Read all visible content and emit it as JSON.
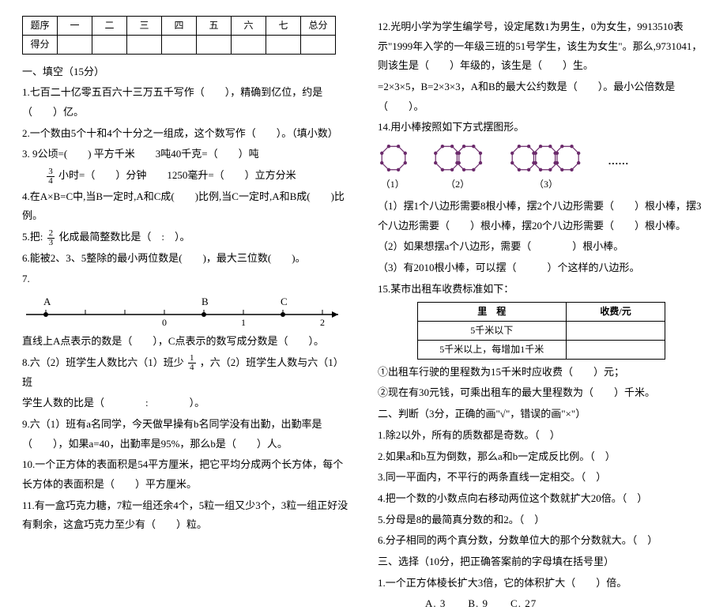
{
  "score_table": {
    "headers": [
      "题序",
      "一",
      "二",
      "三",
      "四",
      "五",
      "六",
      "七",
      "总分"
    ],
    "row2_first": "得分"
  },
  "left": {
    "h1": "一、填空（15分）",
    "q1": "1.七百二十亿零五百六十三万五千写作（　　），精确到亿位，约是（　　）亿。",
    "q2": "2.一个数由5个十和4个十分之一组成，这个数写作（　　）。（填小数）",
    "q3a": "3. 9公顷=(　　) 平方千米　　3吨40千克=（　　）吨",
    "q3b_pre": "　　",
    "q3b_mid": "小时=（　　）分钟　　1250毫升=（　　）立方分米",
    "q4": "4.在A×B=C中,当B一定时,A和C成(　　)比例,当C一定时,A和B成(　　)比例。",
    "q5_pre": "5.把:",
    "q5_post": "化成最简整数比是（　:　）。",
    "q6": "6.能被2、3、5整除的最小两位数是(　　)，最大三位数(　　)。",
    "q7": "7.",
    "q7_line": "直线上A点表示的数是（　　），C点表示的数写成分数是（　　）。",
    "q8a": "8.六（2）班学生人数比六（1）班少",
    "q8b": "，六（2）班学生人数与六（1）班",
    "q8c": "学生人数的比是（　　　　:　　　　）。",
    "q9": "9.六（1）班有a名同学，今天做早操有b名同学没有出勤，出勤率是（　　），如果a=40，出勤率是95%，那么b是（　　）人。",
    "q10": "10.一个正方体的表面积是54平方厘米，把它平均分成两个长方体，每个长方体的表面积是（　　）平方厘米。",
    "q11": "11.有一盒巧克力糖，7粒一组还余4个，5粒一组又少3个，3粒一组正好没有剩余，这盒巧克力至少有（　　）粒。",
    "frac34": {
      "n": "3",
      "d": "4"
    },
    "frac23": {
      "n": "2",
      "d": "3"
    },
    "frac14": {
      "n": "1",
      "d": "4"
    },
    "numline": {
      "A": "A",
      "B": "B",
      "C": "C",
      "t0": "0",
      "t1": "1",
      "t2": "2"
    }
  },
  "right": {
    "q12": "12.光明小学为学生编学号，设定尾数1为男生，0为女生，9913510表示\"1999年入学的一年级三班的51号学生，该生为女生\"。那么,9731041，则该生是（　　）年级的，该生是（　　）生。",
    "q13": "=2×3×5，B=2×3×3，A和B的最大公约数是（　　）。最小公倍数是（　　）。",
    "q14": "14.用小棒按照如下方式摆图形。",
    "oct_labels": [
      "（1）",
      "（2）",
      "（3）"
    ],
    "dots": "……",
    "q14_1": "（1）摆1个八边形需要8根小棒，摆2个八边形需要（　　）根小棒，摆3个八边形需要（　　）根小棒，摆20个八边形需要（　　）根小棒。",
    "q14_2": "（2）如果想摆a个八边形，需要（　　　　）根小棒。",
    "q14_3": "（3）有2010根小棒，可以摆（　　　）个这样的八边形。",
    "q15": "15.某市出租车收费标准如下：",
    "fare": {
      "h1": "里　程",
      "h2": "收费/元",
      "r1": "5千米以下",
      "r2": "5千米以上，每增加1千米"
    },
    "q15_1": "①出租车行驶的里程数为15千米时应收费（　　）元；",
    "q15_2": "②现在有30元钱，可乘出租车的最大里程数为（　　）千米。",
    "h2": "二、判断（3分，正确的画\"√\"，错误的画\"×\"）",
    "j1": "1.除2以外，所有的质数都是奇数。（　）",
    "j2": "2.如果a和b互为倒数，那么a和b一定成反比例。（　）",
    "j3": "3.同一平面内，不平行的两条直线一定相交。（　）",
    "j4": "4.把一个数的小数点向右移动两位这个数就扩大20倍。（　）",
    "j5": "5.分母是8的最简真分数的和2。（　）",
    "j6": "6.分子相同的两个真分数，分数单位大的那个分数就大。（　）",
    "h3": "三、选择（10分，把正确答案前的字母填在括号里）",
    "c1": "1.一个正方体棱长扩大3倍，它的体积扩大（　　）倍。",
    "c1_choices": "A. 3　　B. 9　　C. 27"
  },
  "colors": {
    "dot": "#6b2a6b",
    "line": "#000000"
  }
}
